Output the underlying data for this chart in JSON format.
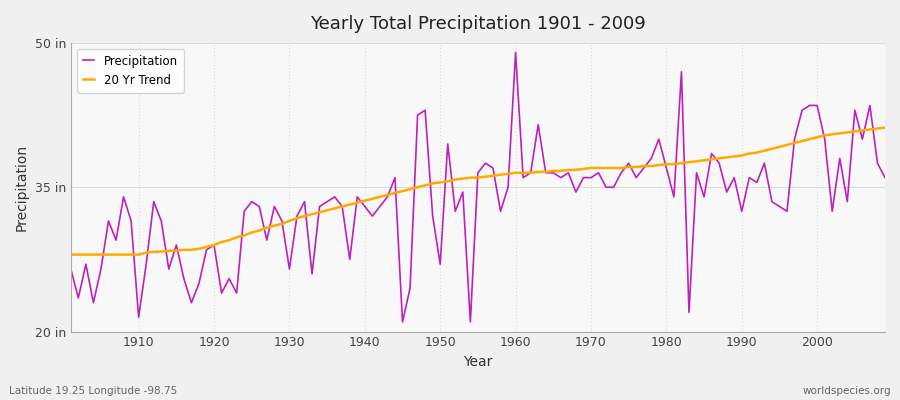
{
  "title": "Yearly Total Precipitation 1901 - 2009",
  "xlabel": "Year",
  "ylabel": "Precipitation",
  "xlim": [
    1901,
    2009
  ],
  "ylim": [
    20,
    50
  ],
  "yticks": [
    20,
    35,
    50
  ],
  "ytick_labels": [
    "20 in",
    "35 in",
    "50 in"
  ],
  "bg_color": "#f0f0f0",
  "plot_bg_color": "#f8f8f8",
  "grid_color": "#cccccc",
  "line_color": "#bb22bb",
  "trend_color": "#ffaa00",
  "legend_labels": [
    "Precipitation",
    "20 Yr Trend"
  ],
  "footer_left": "Latitude 19.25 Longitude -98.75",
  "footer_right": "worldspecies.org",
  "years": [
    1901,
    1902,
    1903,
    1904,
    1905,
    1906,
    1907,
    1908,
    1909,
    1910,
    1911,
    1912,
    1913,
    1914,
    1915,
    1916,
    1917,
    1918,
    1919,
    1920,
    1921,
    1922,
    1923,
    1924,
    1925,
    1926,
    1927,
    1928,
    1929,
    1930,
    1931,
    1932,
    1933,
    1934,
    1935,
    1936,
    1937,
    1938,
    1939,
    1940,
    1941,
    1942,
    1943,
    1944,
    1945,
    1946,
    1947,
    1948,
    1949,
    1950,
    1951,
    1952,
    1953,
    1954,
    1955,
    1956,
    1957,
    1958,
    1959,
    1960,
    1961,
    1962,
    1963,
    1964,
    1965,
    1966,
    1967,
    1968,
    1969,
    1970,
    1971,
    1972,
    1973,
    1974,
    1975,
    1976,
    1977,
    1978,
    1979,
    1980,
    1981,
    1982,
    1983,
    1984,
    1985,
    1986,
    1987,
    1988,
    1989,
    1990,
    1991,
    1992,
    1993,
    1994,
    1995,
    1996,
    1997,
    1998,
    1999,
    2000,
    2001,
    2002,
    2003,
    2004,
    2005,
    2006,
    2007,
    2008,
    2009
  ],
  "precip": [
    26.5,
    23.5,
    27.0,
    23.0,
    26.5,
    31.5,
    29.5,
    34.0,
    31.5,
    21.5,
    27.0,
    33.5,
    31.5,
    26.5,
    29.0,
    25.5,
    23.0,
    25.0,
    28.5,
    29.0,
    24.0,
    25.5,
    24.0,
    32.5,
    33.5,
    33.0,
    29.5,
    33.0,
    31.5,
    26.5,
    32.0,
    33.5,
    26.0,
    33.0,
    33.5,
    34.0,
    33.0,
    27.5,
    34.0,
    33.0,
    32.0,
    33.0,
    34.0,
    36.0,
    21.0,
    24.5,
    42.5,
    43.0,
    32.0,
    27.0,
    39.5,
    32.5,
    34.5,
    21.0,
    36.5,
    37.5,
    37.0,
    32.5,
    35.0,
    49.0,
    36.0,
    36.5,
    41.5,
    36.5,
    36.5,
    36.0,
    36.5,
    34.5,
    36.0,
    36.0,
    36.5,
    35.0,
    35.0,
    36.5,
    37.5,
    36.0,
    37.0,
    38.0,
    40.0,
    37.0,
    34.0,
    47.0,
    22.0,
    36.5,
    34.0,
    38.5,
    37.5,
    34.5,
    36.0,
    32.5,
    36.0,
    35.5,
    37.5,
    33.5,
    33.0,
    32.5,
    40.0,
    43.0,
    43.5,
    43.5,
    40.0,
    32.5,
    38.0,
    33.5,
    43.0,
    40.0,
    43.5,
    37.5,
    36.0
  ],
  "trend": [
    28.0,
    28.0,
    28.0,
    28.0,
    28.0,
    28.0,
    28.0,
    28.0,
    28.0,
    28.0,
    28.2,
    28.3,
    28.3,
    28.4,
    28.4,
    28.5,
    28.5,
    28.6,
    28.8,
    29.0,
    29.3,
    29.5,
    29.8,
    30.0,
    30.3,
    30.5,
    30.8,
    31.0,
    31.2,
    31.5,
    31.8,
    32.0,
    32.2,
    32.4,
    32.6,
    32.8,
    33.0,
    33.2,
    33.4,
    33.6,
    33.8,
    34.0,
    34.2,
    34.4,
    34.6,
    34.8,
    35.0,
    35.2,
    35.4,
    35.5,
    35.6,
    35.8,
    35.9,
    36.0,
    36.0,
    36.1,
    36.2,
    36.3,
    36.4,
    36.5,
    36.5,
    36.5,
    36.6,
    36.6,
    36.7,
    36.7,
    36.8,
    36.8,
    36.9,
    37.0,
    37.0,
    37.0,
    37.0,
    37.0,
    37.1,
    37.1,
    37.2,
    37.2,
    37.3,
    37.4,
    37.4,
    37.5,
    37.6,
    37.7,
    37.8,
    37.9,
    38.0,
    38.1,
    38.2,
    38.3,
    38.5,
    38.6,
    38.8,
    39.0,
    39.2,
    39.4,
    39.6,
    39.8,
    40.0,
    40.2,
    40.4,
    40.5,
    40.6,
    40.7,
    40.8,
    40.9,
    41.0,
    41.1,
    41.2
  ]
}
